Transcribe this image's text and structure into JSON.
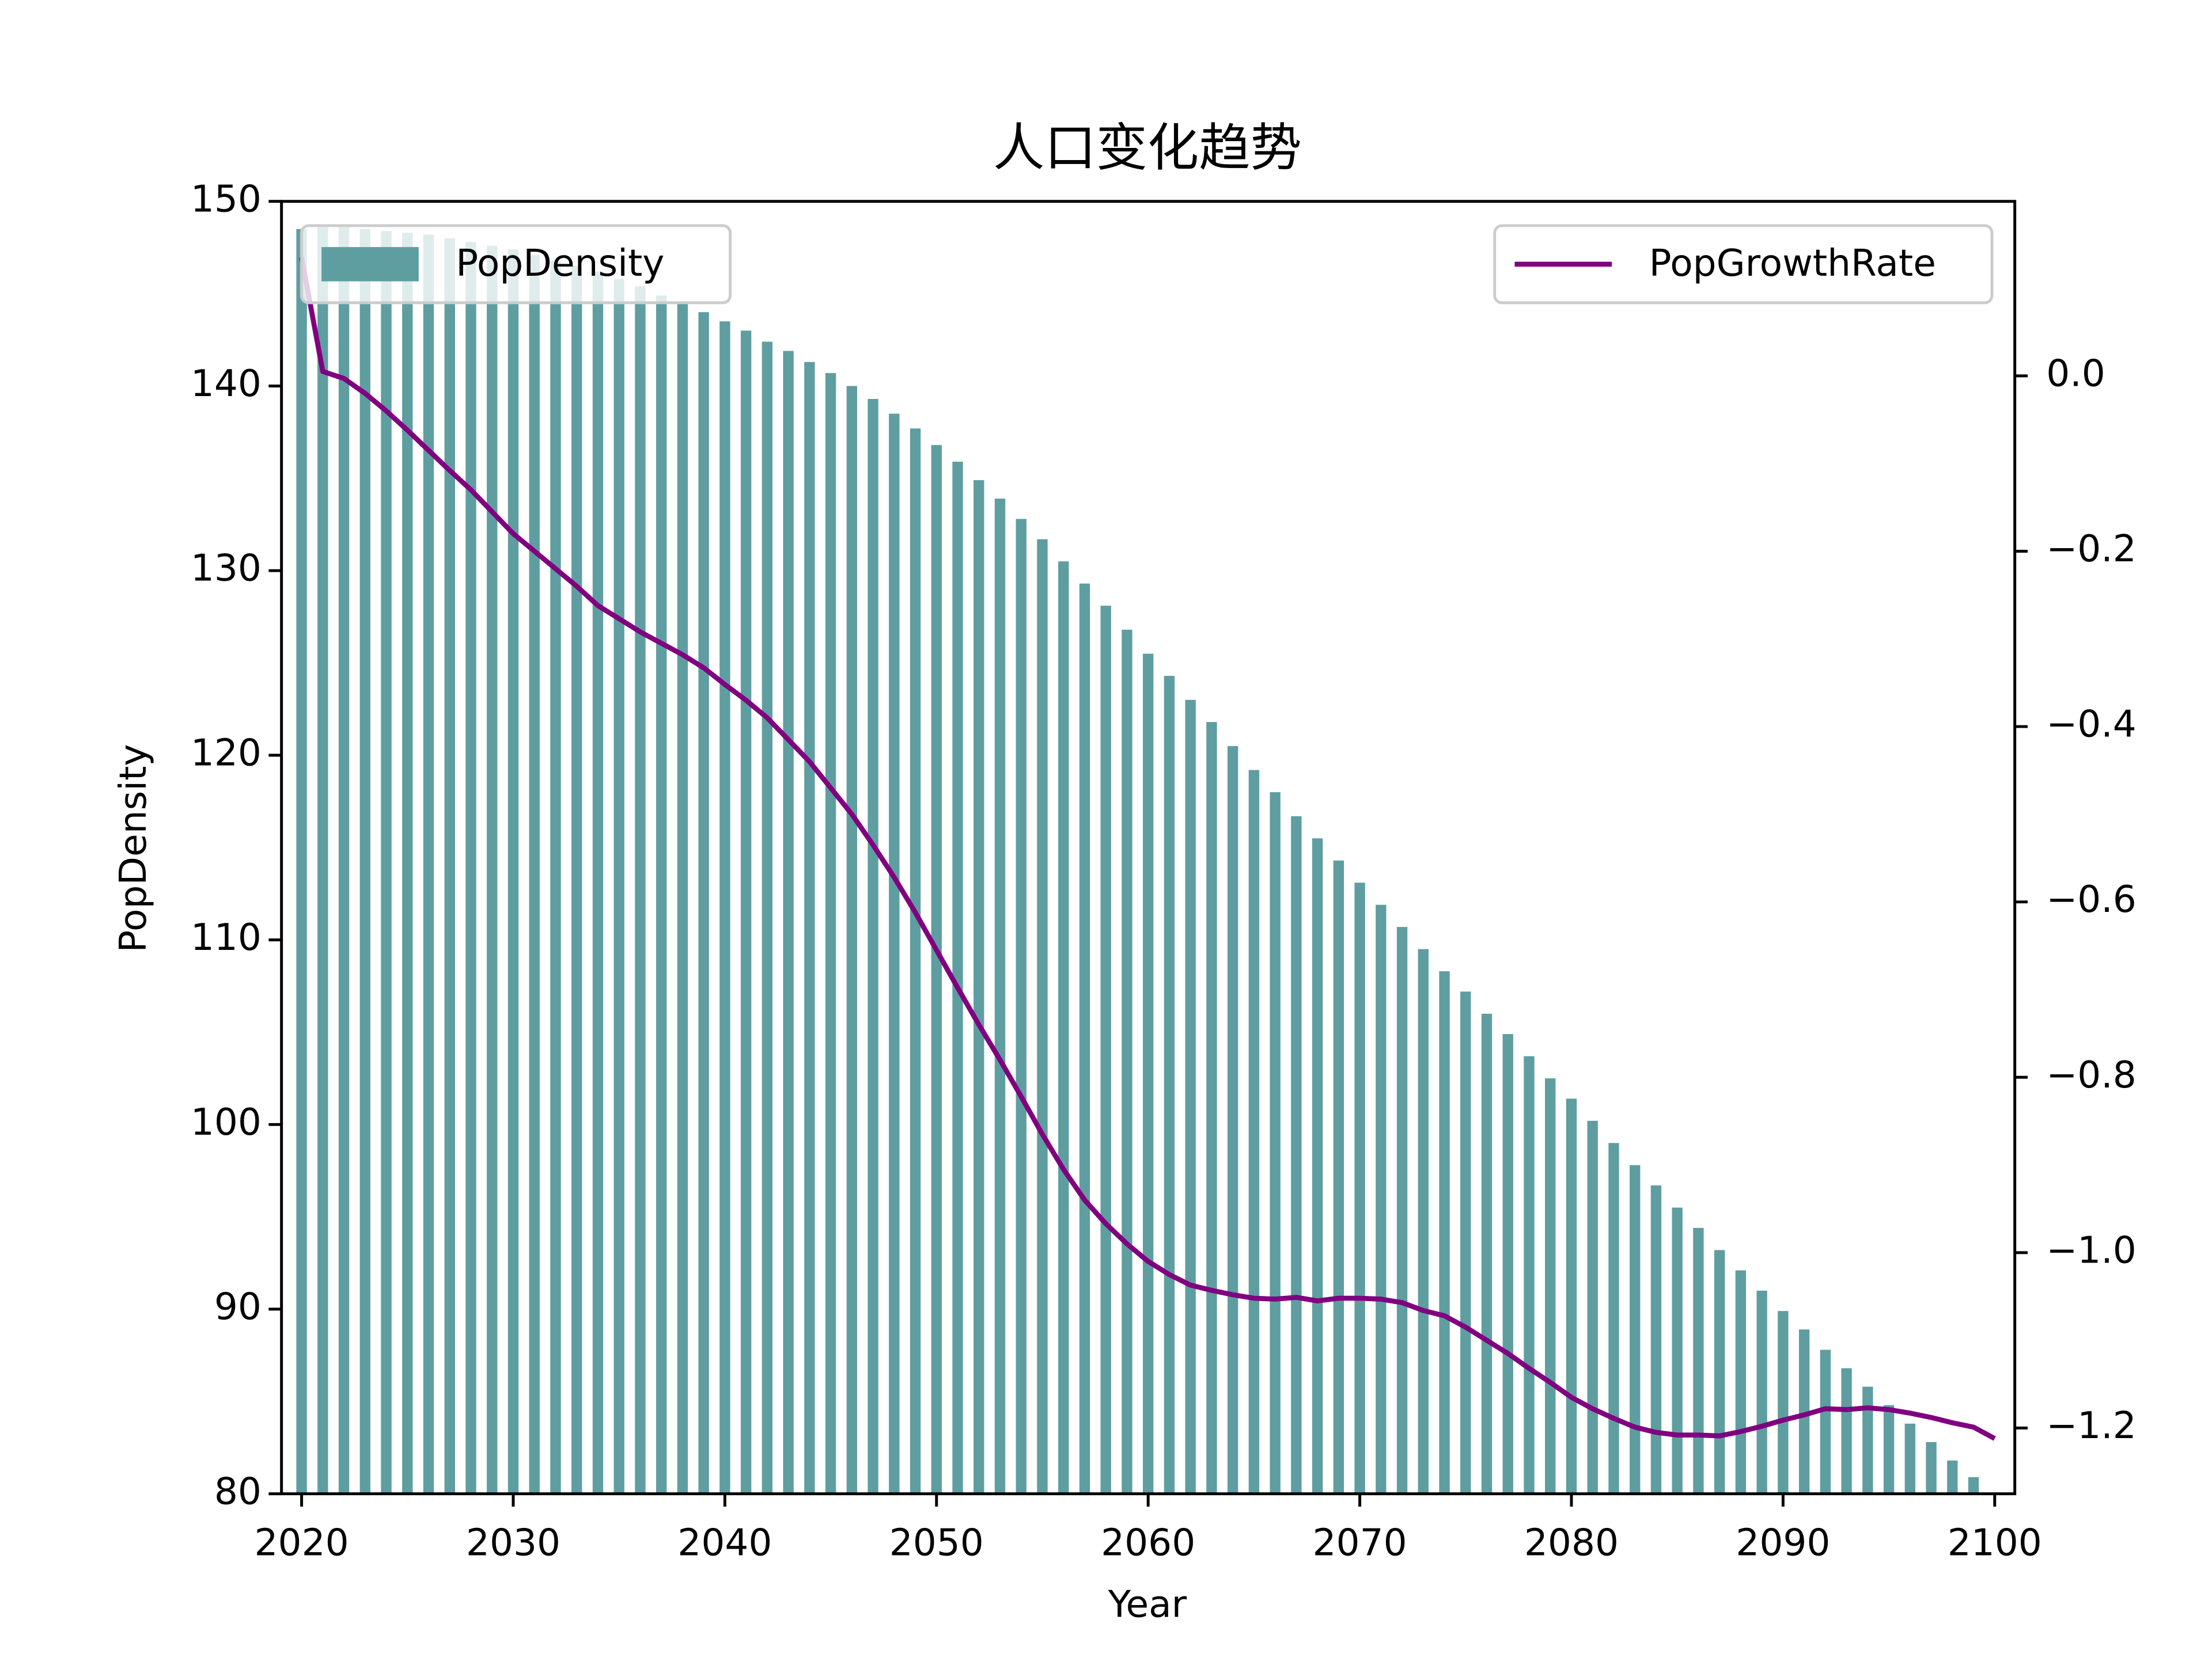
{
  "chart_data": {
    "type": "bar",
    "title": "人口变化趋势",
    "x_label": "Year",
    "y_label": "PopDensity",
    "x": [
      2020,
      2021,
      2022,
      2023,
      2024,
      2025,
      2026,
      2027,
      2028,
      2029,
      2030,
      2031,
      2032,
      2033,
      2034,
      2035,
      2036,
      2037,
      2038,
      2039,
      2040,
      2041,
      2042,
      2043,
      2044,
      2045,
      2046,
      2047,
      2048,
      2049,
      2050,
      2051,
      2052,
      2053,
      2054,
      2055,
      2056,
      2057,
      2058,
      2059,
      2060,
      2061,
      2062,
      2063,
      2064,
      2065,
      2066,
      2067,
      2068,
      2069,
      2070,
      2071,
      2072,
      2073,
      2074,
      2075,
      2076,
      2077,
      2078,
      2079,
      2080,
      2081,
      2082,
      2083,
      2084,
      2085,
      2086,
      2087,
      2088,
      2089,
      2090,
      2091,
      2092,
      2093,
      2094,
      2095,
      2096,
      2097,
      2098,
      2099,
      2100
    ],
    "series": [
      {
        "name": "PopDensity",
        "type": "bar",
        "color": "#5f9ea0",
        "legend": "upper left",
        "values": [
          148.5,
          148.6,
          148.6,
          148.5,
          148.4,
          148.3,
          148.2,
          148.0,
          147.8,
          147.6,
          147.4,
          147.1,
          146.8,
          146.5,
          146.2,
          145.8,
          145.4,
          144.9,
          144.5,
          144.0,
          143.5,
          143.0,
          142.4,
          141.9,
          141.3,
          140.7,
          140.0,
          139.3,
          138.5,
          137.7,
          136.8,
          135.9,
          134.9,
          133.9,
          132.8,
          131.7,
          130.5,
          129.3,
          128.1,
          126.8,
          125.5,
          124.3,
          123.0,
          121.8,
          120.5,
          119.2,
          118.0,
          116.7,
          115.5,
          114.3,
          113.1,
          111.9,
          110.7,
          109.5,
          108.3,
          107.2,
          106.0,
          104.9,
          103.7,
          102.5,
          101.4,
          100.2,
          99.0,
          97.8,
          96.7,
          95.5,
          94.4,
          93.2,
          92.1,
          91.0,
          89.9,
          88.9,
          87.8,
          86.8,
          85.8,
          84.8,
          83.8,
          82.8,
          81.8,
          80.9,
          80.0
        ]
      },
      {
        "name": "PopGrowthRate",
        "type": "line",
        "color": "#800080",
        "axis": "y2",
        "legend": "upper right",
        "values": [
          0.135,
          0.005,
          -0.003,
          -0.02,
          -0.04,
          -0.062,
          -0.085,
          -0.108,
          -0.13,
          -0.155,
          -0.18,
          -0.2,
          -0.22,
          -0.24,
          -0.262,
          -0.277,
          -0.292,
          -0.305,
          -0.318,
          -0.333,
          -0.352,
          -0.37,
          -0.39,
          -0.415,
          -0.44,
          -0.47,
          -0.5,
          -0.535,
          -0.572,
          -0.612,
          -0.655,
          -0.698,
          -0.74,
          -0.78,
          -0.822,
          -0.865,
          -0.905,
          -0.94,
          -0.967,
          -0.99,
          -1.01,
          -1.025,
          -1.037,
          -1.043,
          -1.048,
          -1.052,
          -1.053,
          -1.051,
          -1.055,
          -1.052,
          -1.052,
          -1.053,
          -1.057,
          -1.066,
          -1.072,
          -1.085,
          -1.1,
          -1.115,
          -1.132,
          -1.148,
          -1.165,
          -1.178,
          -1.189,
          -1.199,
          -1.205,
          -1.208,
          -1.208,
          -1.209,
          -1.204,
          -1.198,
          -1.191,
          -1.185,
          -1.178,
          -1.179,
          -1.177,
          -1.179,
          -1.183,
          -1.188,
          -1.194,
          -1.199,
          -1.212
        ]
      }
    ],
    "xlim": [
      2019.05,
      2100.95
    ],
    "xticks": [
      2020,
      2030,
      2040,
      2050,
      2060,
      2070,
      2080,
      2090,
      2100
    ],
    "ylim": [
      80,
      150
    ],
    "yticks": [
      80,
      90,
      100,
      110,
      120,
      130,
      140,
      150
    ],
    "y2lim": [
      -1.275,
      0.199
    ],
    "y2ticks": [
      {
        "value": 0,
        "label": "0.0"
      },
      {
        "value": -0.2,
        "label": "−0.2"
      },
      {
        "value": -0.4,
        "label": "−0.4"
      },
      {
        "value": -0.6,
        "label": "−0.6"
      },
      {
        "value": -0.8,
        "label": "−0.8"
      },
      {
        "value": -1.0,
        "label": "−1.0"
      },
      {
        "value": -1.2,
        "label": "−1.2"
      }
    ],
    "grid": false
  }
}
